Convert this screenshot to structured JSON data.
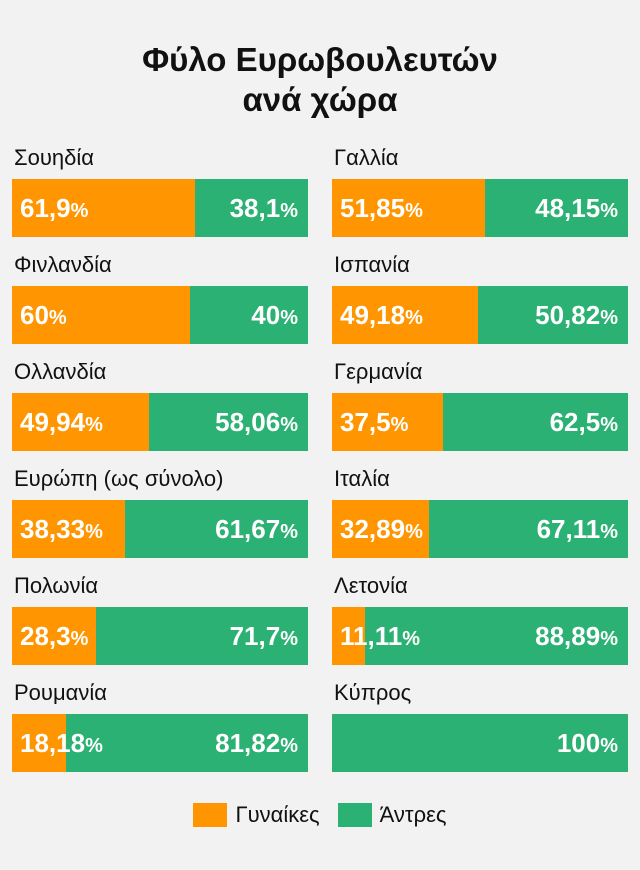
{
  "title": {
    "line1": "Φύλο Ευρωβουλευτών",
    "line2": "ανά χώρα"
  },
  "colors": {
    "women": "#ff9500",
    "men": "#2bb173",
    "background": "#f2f2f2"
  },
  "legend": {
    "women": "Γυναίκες",
    "men": "Άντρες"
  },
  "chart_data": {
    "type": "bar",
    "stacked": true,
    "orientation": "horizontal",
    "title": "Φύλο Ευρωβουλευτών ανά χώρα",
    "series": [
      {
        "name": "Γυναίκες",
        "color": "#ff9500"
      },
      {
        "name": "Άντρες",
        "color": "#2bb173"
      }
    ],
    "countries": [
      {
        "name": "Σουηδία",
        "women": 61.9,
        "men": 38.1,
        "women_label": "61,9",
        "men_label": "38,1"
      },
      {
        "name": "Γαλλία",
        "women": 51.85,
        "men": 48.15,
        "women_label": "51,85",
        "men_label": "48,15"
      },
      {
        "name": "Φινλανδία",
        "women": 60,
        "men": 40,
        "women_label": "60",
        "men_label": "40"
      },
      {
        "name": "Ισπανία",
        "women": 49.18,
        "men": 50.82,
        "women_label": "49,18",
        "men_label": "50,82"
      },
      {
        "name": "Ολλανδία",
        "women": 49.94,
        "men": 58.06,
        "women_label": "49,94",
        "men_label": "58,06"
      },
      {
        "name": "Γερμανία",
        "women": 37.5,
        "men": 62.5,
        "women_label": "37,5",
        "men_label": "62,5"
      },
      {
        "name": "Ευρώπη (ως σύνολο)",
        "women": 38.33,
        "men": 61.67,
        "women_label": "38,33",
        "men_label": "61,67"
      },
      {
        "name": "Ιταλία",
        "women": 32.89,
        "men": 67.11,
        "women_label": "32,89",
        "men_label": "67,11"
      },
      {
        "name": "Πολωνία",
        "women": 28.3,
        "men": 71.7,
        "women_label": "28,3",
        "men_label": "71,7"
      },
      {
        "name": "Λετονία",
        "women": 11.11,
        "men": 88.89,
        "women_label": "11,11",
        "men_label": "88,89"
      },
      {
        "name": "Ρουμανία",
        "women": 18.18,
        "men": 81.82,
        "women_label": "18,18",
        "men_label": "81,82"
      },
      {
        "name": "Κύπρος",
        "women": 0,
        "men": 100,
        "women_label": "",
        "men_label": "100"
      }
    ],
    "unit": "%"
  }
}
